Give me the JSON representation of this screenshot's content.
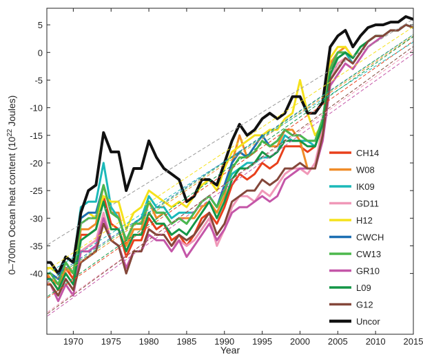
{
  "chart_data": {
    "type": "line",
    "title": "",
    "xlabel": "Year",
    "ylabel_prefix": "0–700m Ocean heat content (10",
    "ylabel_exp": "22",
    "ylabel_suffix": " Joules)",
    "xlim": [
      1966.5,
      2015
    ],
    "ylim": [
      -51,
      8
    ],
    "xticks": [
      1970,
      1975,
      1980,
      1985,
      1990,
      1995,
      2000,
      2005,
      2010,
      2015
    ],
    "yticks": [
      5,
      0,
      -5,
      -10,
      -15,
      -20,
      -25,
      -30,
      -35,
      -40
    ],
    "grid": false,
    "legend_position": "bottom-right",
    "x": [
      1966,
      1967,
      1968,
      1969,
      1970,
      1971,
      1972,
      1973,
      1974,
      1975,
      1976,
      1977,
      1978,
      1979,
      1980,
      1981,
      1982,
      1983,
      1984,
      1985,
      1986,
      1987,
      1988,
      1989,
      1990,
      1991,
      1992,
      1993,
      1994,
      1995,
      1996,
      1997,
      1998,
      1999,
      2000,
      2001,
      2002,
      2003,
      2004,
      2005,
      2006,
      2007,
      2008,
      2009,
      2010,
      2011,
      2012,
      2013,
      2014,
      2015
    ],
    "series": [
      {
        "name": "CH14",
        "color": "#e8401c",
        "values": [
          -40,
          -41,
          -43,
          -39,
          -41,
          -33,
          -33,
          -32,
          -26,
          -31,
          -32,
          -37,
          -34,
          -34,
          -30,
          -32,
          -31,
          -34,
          -33,
          -35,
          -33,
          -30,
          -29,
          -31,
          -28,
          -24,
          -22,
          -23,
          -22,
          -20,
          -21,
          -20,
          -17,
          -17,
          -17,
          -18,
          -17,
          -13,
          -3,
          -1,
          0,
          -2,
          0,
          2,
          3,
          3,
          4,
          4,
          5,
          4.5
        ]
      },
      {
        "name": "W08",
        "color": "#f08c28",
        "values": [
          -39,
          -41,
          -42,
          -39,
          -40,
          -32,
          -32,
          -31,
          -24,
          -29,
          -29,
          -35,
          -32,
          -32,
          -27,
          -30,
          -29,
          -31,
          -30,
          -30,
          -30,
          -28,
          -27,
          -29,
          -26,
          -20,
          -15,
          -19,
          -18,
          -16,
          -17,
          -17,
          -14,
          -14,
          -16,
          -21,
          -21,
          -13,
          -2,
          0,
          1,
          -1,
          1,
          2,
          3,
          3,
          4,
          4,
          5,
          4.5
        ]
      },
      {
        "name": "IK09",
        "color": "#1bb9b9",
        "values": [
          -39,
          -39,
          -40,
          -37,
          -38,
          -28,
          -27,
          -27,
          -20,
          -28,
          -30,
          -34,
          -31,
          -30,
          -26,
          -28,
          -28,
          -30,
          -29,
          -29,
          -29,
          -27,
          -26,
          -28,
          -25,
          -22,
          -21,
          -20,
          -20,
          -19,
          -19,
          -18,
          -15,
          -16,
          -16,
          -16,
          -17,
          -13,
          -4,
          -1,
          0,
          -2,
          0,
          2,
          3,
          3,
          4,
          4,
          5,
          4.5
        ]
      },
      {
        "name": "GD11",
        "color": "#f098b8",
        "values": [
          -41,
          -42,
          -44,
          -41,
          -43,
          -36,
          -35,
          -34,
          -29,
          -34,
          -35,
          -39,
          -36,
          -36,
          -32,
          -33,
          -33,
          -35,
          -34,
          -35,
          -34,
          -32,
          -30,
          -35,
          -32,
          -28,
          -26,
          -26,
          -27,
          -25,
          -26,
          -24,
          -22,
          -21,
          -21,
          -22,
          -20,
          -14,
          -5,
          -2,
          -1,
          -2,
          0,
          2,
          3,
          3,
          4,
          4,
          5,
          4.5
        ]
      },
      {
        "name": "H12",
        "color": "#f5e21b",
        "values": [
          -39,
          -39,
          -40,
          -37,
          -38,
          -30,
          -29,
          -30,
          -26,
          -27,
          -27,
          -32,
          -29,
          -28,
          -25,
          -26,
          -27,
          -28,
          -27,
          -28,
          -26,
          -24,
          -23,
          -25,
          -21,
          -18,
          -17,
          -16,
          -15,
          -15,
          -14,
          -14,
          -12,
          -11,
          -5,
          -11,
          -15,
          -13,
          -1,
          1,
          1,
          -1,
          1,
          2,
          3,
          3,
          4,
          4,
          5,
          4.5
        ]
      },
      {
        "name": "CWCH",
        "color": "#1c6fb3",
        "values": [
          -40,
          -40,
          -41,
          -38,
          -40,
          -30,
          -29,
          -29,
          -24,
          -29,
          -30,
          -34,
          -31,
          -31,
          -27,
          -29,
          -29,
          -31,
          -30,
          -31,
          -29,
          -27,
          -26,
          -28,
          -24,
          -20,
          -18,
          -19,
          -17,
          -15,
          -17,
          -16,
          -14,
          -15,
          -15,
          -16,
          -16,
          -12,
          -3,
          0,
          0,
          -1,
          1,
          2,
          3,
          3,
          4,
          4,
          5,
          4.5
        ]
      },
      {
        "name": "CW13",
        "color": "#4cb84c",
        "values": [
          -40,
          -40,
          -42,
          -38,
          -40,
          -31,
          -30,
          -30,
          -24,
          -29,
          -30,
          -34,
          -31,
          -31,
          -27,
          -29,
          -29,
          -31,
          -30,
          -31,
          -29,
          -27,
          -26,
          -28,
          -25,
          -21,
          -19,
          -19,
          -18,
          -16,
          -17,
          -16,
          -14,
          -15,
          -15,
          -16,
          -16,
          -12,
          -3,
          0,
          0,
          -1,
          1,
          2,
          3,
          3,
          4,
          4,
          5,
          4.5
        ]
      },
      {
        "name": "GR10",
        "color": "#c456a8",
        "values": [
          -42,
          -42,
          -45,
          -42,
          -44,
          -36,
          -36,
          -35,
          -30,
          -34,
          -35,
          -39,
          -36,
          -36,
          -33,
          -34,
          -34,
          -36,
          -34,
          -37,
          -35,
          -33,
          -31,
          -34,
          -32,
          -29,
          -28,
          -28,
          -27,
          -26,
          -27,
          -26,
          -23,
          -22,
          -21,
          -21,
          -21,
          -16,
          -6,
          -4,
          -2,
          -3,
          -1,
          1,
          2,
          3,
          4,
          4,
          5,
          4.5
        ]
      },
      {
        "name": "L09",
        "color": "#139646",
        "values": [
          -41,
          -41,
          -43,
          -40,
          -42,
          -34,
          -33,
          -32,
          -27,
          -32,
          -32,
          -36,
          -33,
          -33,
          -29,
          -31,
          -31,
          -33,
          -32,
          -33,
          -31,
          -29,
          -27,
          -30,
          -27,
          -23,
          -21,
          -21,
          -20,
          -18,
          -19,
          -18,
          -16,
          -16,
          -16,
          -17,
          -17,
          -13,
          -4,
          -1,
          0,
          -1,
          1,
          2,
          3,
          3,
          4,
          4,
          5,
          4.5
        ]
      },
      {
        "name": "G12",
        "color": "#84473a",
        "values": [
          -42,
          -42,
          -44,
          -41,
          -43,
          -38,
          -37,
          -36,
          -31,
          -34,
          -35,
          -40,
          -36,
          -36,
          -32,
          -33,
          -33,
          -35,
          -33,
          -34,
          -33,
          -31,
          -29,
          -33,
          -31,
          -27,
          -26,
          -25,
          -25,
          -23,
          -24,
          -23,
          -21,
          -21,
          -20,
          -21,
          -21,
          -15,
          -5,
          -3,
          -1,
          -2,
          0,
          2,
          3,
          3,
          4,
          4,
          5,
          4.5
        ]
      },
      {
        "name": "Uncor",
        "color": "#111111",
        "values": [
          -38,
          -38,
          -40,
          -37,
          -38,
          -29,
          -25,
          -24,
          -14.5,
          -18,
          -18,
          -25,
          -21,
          -21,
          -16,
          -19,
          -21,
          -22,
          -23,
          -27,
          -26,
          -23,
          -23,
          -24,
          -20,
          -16,
          -13,
          -15,
          -14,
          -12,
          -11,
          -12,
          -11,
          -8,
          -8,
          -11,
          -11,
          -9,
          1,
          3,
          4,
          1,
          3,
          4.5,
          5,
          5,
          5.5,
          5.5,
          6.5,
          6
        ]
      }
    ]
  }
}
